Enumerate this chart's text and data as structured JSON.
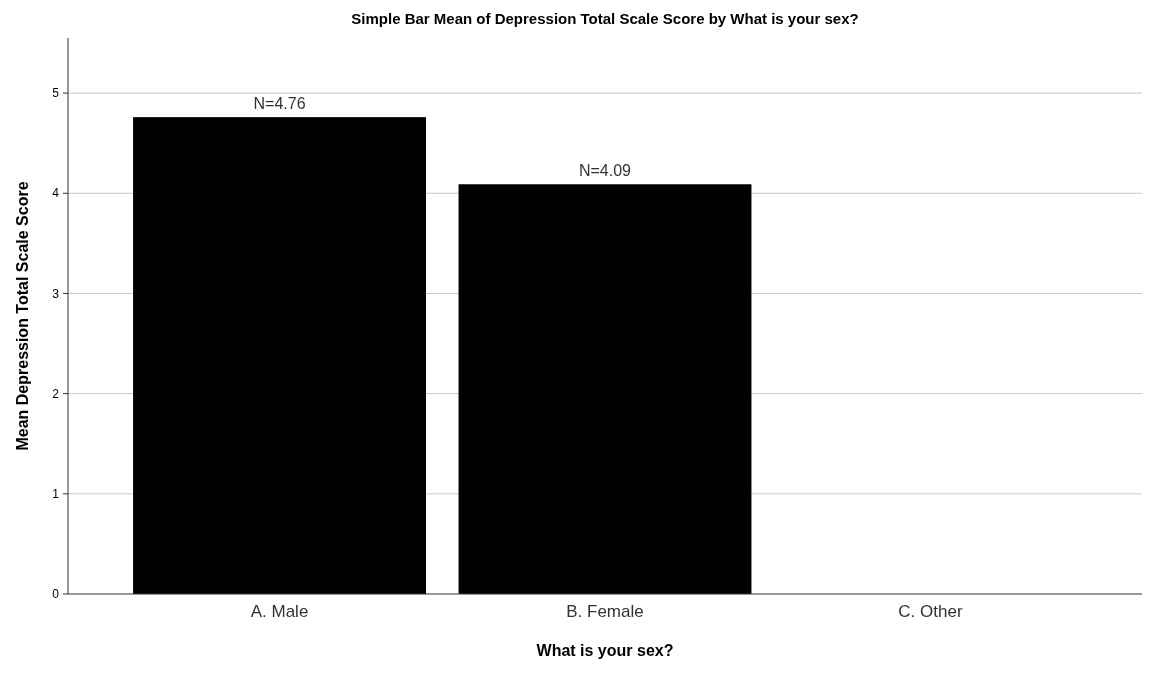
{
  "chart_data": {
    "type": "bar",
    "title": "Simple Bar Mean of Depression Total Scale Score by What is your sex?",
    "xlabel": "What is your sex?",
    "ylabel": "Mean Depression Total Scale Score",
    "categories": [
      "A. Male",
      "B. Female",
      "C. Other"
    ],
    "values": [
      4.76,
      4.09,
      null
    ],
    "value_labels": [
      "N=4.76",
      "N=4.09",
      null
    ],
    "color": "#000000",
    "ylim": [
      0,
      5.55
    ],
    "yticks": [
      0,
      1,
      2,
      3,
      4,
      5
    ],
    "grid": "y"
  }
}
